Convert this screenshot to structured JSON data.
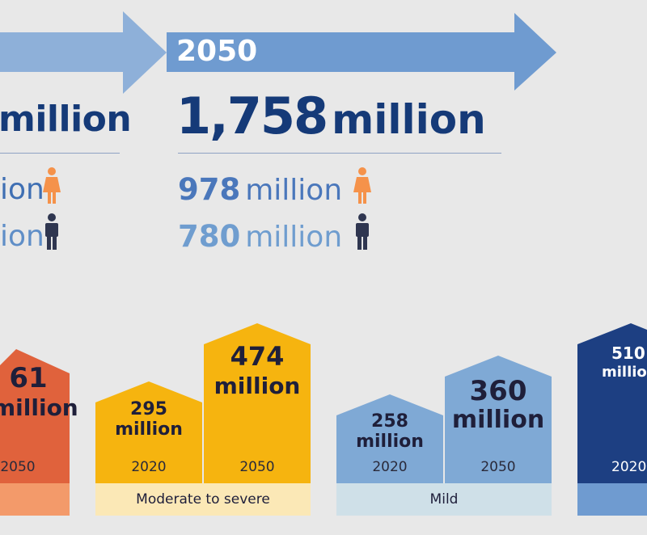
{
  "top": {
    "year": "2050",
    "left_total_fragment": "million",
    "left_female_fragment": "ion",
    "left_male_fragment": "ion",
    "total_value": "1,758",
    "total_unit": "million",
    "female_value": "978",
    "female_unit": "million",
    "male_value": "780",
    "male_unit": "million"
  },
  "groups": [
    {
      "category": "",
      "bars": [
        {
          "value": "61",
          "unit": "million",
          "year": "2050"
        }
      ]
    },
    {
      "category": "Moderate to severe",
      "bars": [
        {
          "value": "295",
          "unit": "million",
          "year": "2020"
        },
        {
          "value": "474",
          "unit": "million",
          "year": "2050"
        }
      ]
    },
    {
      "category": "Mild",
      "bars": [
        {
          "value": "258",
          "unit": "million",
          "year": "2020"
        },
        {
          "value": "360",
          "unit": "million",
          "year": "2050"
        }
      ]
    },
    {
      "category": "",
      "bars": [
        {
          "value": "510",
          "unit": "millio",
          "year": "2020"
        }
      ]
    }
  ],
  "colors": {
    "arrow_left": "#8eb0d9",
    "arrow_right": "#6f9bd0",
    "navy": "#153a78",
    "female_icon": "#f5924a",
    "male_icon": "#2f3650",
    "orange_bar": "#e0623c",
    "orange_base": "#f39a6a",
    "yellow_bar": "#f6b40f",
    "yellow_base": "#fbe8b6",
    "blue_bar": "#7fa9d5",
    "blue_base": "#cfe0e8",
    "navy_bar": "#1d3f82"
  }
}
